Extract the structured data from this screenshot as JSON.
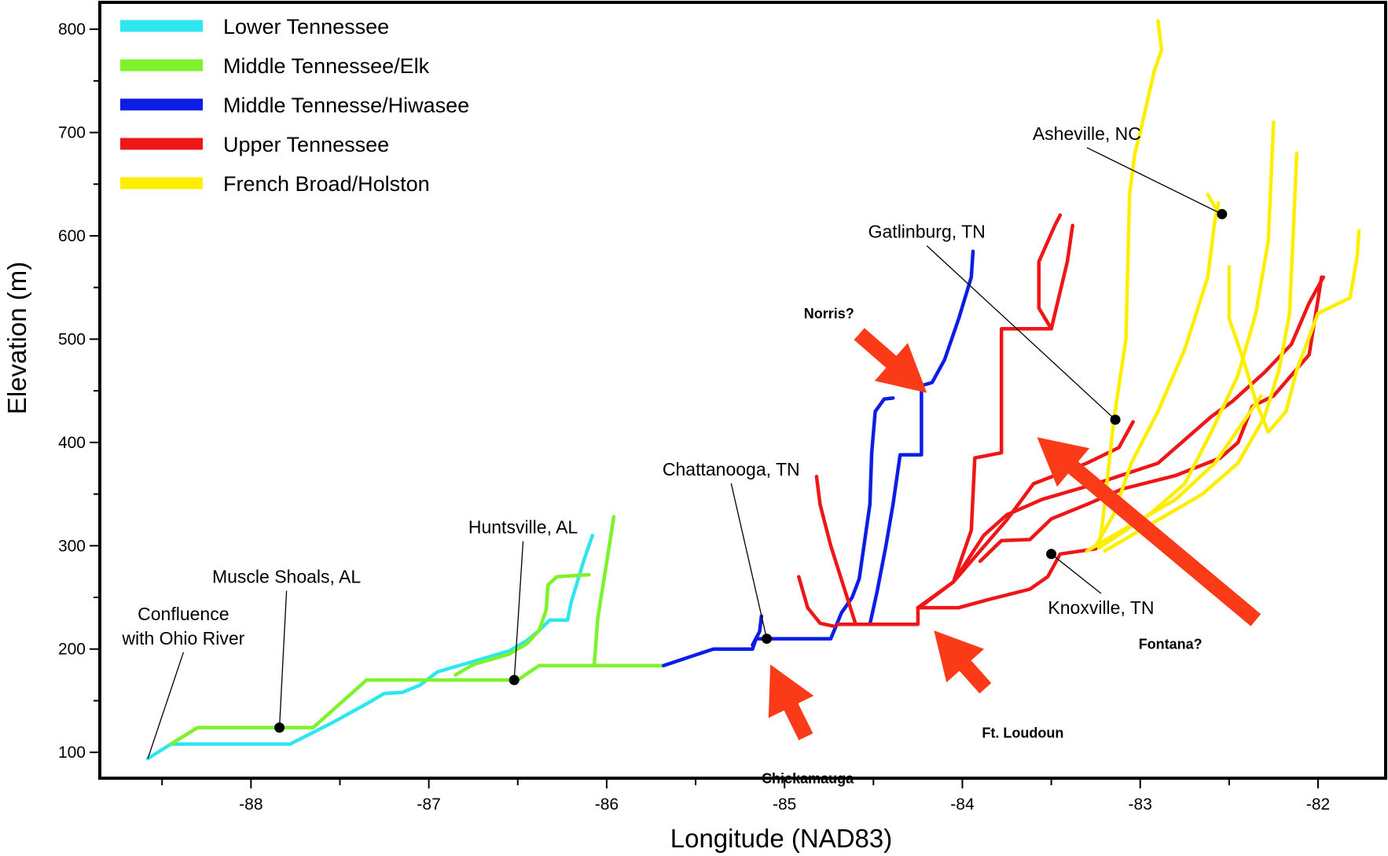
{
  "chart_data": {
    "type": "line",
    "title": "",
    "xlabel": "Longitude (NAD83)",
    "ylabel": "Elevation (m)",
    "xlim": [
      -88.85,
      -81.62
    ],
    "ylim": [
      75,
      826
    ],
    "x_ticks": [
      -88,
      -87,
      -86,
      -85,
      -84,
      -83,
      -82
    ],
    "y_ticks": [
      100,
      200,
      300,
      400,
      500,
      600,
      700,
      800
    ],
    "legend_position": "top-left",
    "grid": false,
    "series": [
      {
        "name": "Lower Tennessee",
        "color": "#2ee6f0",
        "paths": [
          [
            [
              -88.58,
              94
            ],
            [
              -88.45,
              108
            ],
            [
              -87.78,
              108
            ],
            [
              -87.55,
              128
            ],
            [
              -87.35,
              147
            ],
            [
              -87.25,
              157
            ],
            [
              -87.15,
              158
            ],
            [
              -87.05,
              165
            ],
            [
              -86.95,
              178
            ],
            [
              -86.75,
              188
            ],
            [
              -86.55,
              198
            ],
            [
              -86.45,
              208
            ],
            [
              -86.38,
              218
            ],
            [
              -86.32,
              228
            ],
            [
              -86.22,
              228
            ],
            [
              -86.2,
              245
            ],
            [
              -86.13,
              285
            ],
            [
              -86.08,
              310
            ]
          ]
        ]
      },
      {
        "name": "Middle Tennessee/Elk",
        "color": "#7ef22c",
        "paths": [
          [
            [
              -88.45,
              108
            ],
            [
              -88.3,
              124
            ],
            [
              -87.65,
              124
            ],
            [
              -87.35,
              170
            ],
            [
              -86.5,
              170
            ],
            [
              -86.38,
              184
            ],
            [
              -85.68,
              184
            ]
          ],
          [
            [
              -86.85,
              175
            ],
            [
              -86.75,
              185
            ],
            [
              -86.55,
              195
            ],
            [
              -86.45,
              205
            ],
            [
              -86.38,
              218
            ],
            [
              -86.34,
              238
            ],
            [
              -86.33,
              262
            ],
            [
              -86.28,
              270
            ],
            [
              -86.1,
              272
            ]
          ],
          [
            [
              -86.07,
              185
            ],
            [
              -86.05,
              230
            ],
            [
              -85.99,
              295
            ],
            [
              -85.96,
              328
            ]
          ]
        ]
      },
      {
        "name": "Middle Tennesse/Hiwasee",
        "color": "#0c1ee6",
        "paths": [
          [
            [
              -85.68,
              184
            ],
            [
              -85.4,
              200
            ],
            [
              -85.18,
              200
            ],
            [
              -85.16,
              210
            ],
            [
              -84.74,
              210
            ],
            [
              -84.68,
              235
            ],
            [
              -84.62,
              250
            ],
            [
              -84.58,
              268
            ],
            [
              -84.52,
              340
            ],
            [
              -84.51,
              390
            ],
            [
              -84.49,
              430
            ],
            [
              -84.44,
              442
            ],
            [
              -84.39,
              443
            ]
          ],
          [
            [
              -85.18,
              204
            ],
            [
              -85.14,
              217
            ],
            [
              -85.13,
              232
            ]
          ],
          [
            [
              -84.52,
              224
            ],
            [
              -84.48,
              255
            ],
            [
              -84.43,
              300
            ],
            [
              -84.39,
              340
            ],
            [
              -84.35,
              388
            ],
            [
              -84.23,
              388
            ],
            [
              -84.23,
              455
            ],
            [
              -84.17,
              458
            ],
            [
              -84.1,
              480
            ],
            [
              -84.02,
              520
            ],
            [
              -83.95,
              560
            ],
            [
              -83.94,
              585
            ]
          ]
        ]
      },
      {
        "name": "Upper Tennessee",
        "color": "#ee1616",
        "paths": [
          [
            [
              -84.7,
              224
            ],
            [
              -84.25,
              224
            ],
            [
              -84.25,
              240
            ],
            [
              -84.02,
              240
            ],
            [
              -83.85,
              248
            ],
            [
              -83.62,
              258
            ],
            [
              -83.52,
              270
            ],
            [
              -83.45,
              292
            ],
            [
              -83.25,
              297
            ]
          ],
          [
            [
              -84.92,
              270
            ],
            [
              -84.87,
              240
            ],
            [
              -84.8,
              225
            ],
            [
              -84.72,
              222
            ]
          ],
          [
            [
              -84.6,
              224
            ],
            [
              -84.67,
              262
            ],
            [
              -84.74,
              300
            ],
            [
              -84.8,
              340
            ],
            [
              -84.82,
              367
            ]
          ],
          [
            [
              -84.22,
              243
            ],
            [
              -84.05,
              265
            ],
            [
              -83.95,
              315
            ],
            [
              -83.93,
              385
            ],
            [
              -83.78,
              390
            ],
            [
              -83.78,
              510
            ],
            [
              -83.5,
              510
            ],
            [
              -83.57,
              530
            ],
            [
              -83.57,
              575
            ],
            [
              -83.48,
              610
            ],
            [
              -83.45,
              620
            ]
          ],
          [
            [
              -83.5,
              510
            ],
            [
              -83.41,
              575
            ],
            [
              -83.38,
              610
            ]
          ],
          [
            [
              -84.05,
              265
            ],
            [
              -83.75,
              325
            ],
            [
              -83.6,
              360
            ],
            [
              -83.3,
              380
            ],
            [
              -83.12,
              395
            ],
            [
              -83.04,
              420
            ]
          ],
          [
            [
              -83.9,
              285
            ],
            [
              -83.78,
              305
            ],
            [
              -83.62,
              306
            ],
            [
              -83.5,
              326
            ],
            [
              -83.3,
              340
            ],
            [
              -83.1,
              355
            ],
            [
              -82.8,
              368
            ],
            [
              -82.55,
              385
            ],
            [
              -82.45,
              400
            ],
            [
              -82.37,
              435
            ],
            [
              -82.25,
              445
            ],
            [
              -82.15,
              465
            ],
            [
              -82.05,
              485
            ],
            [
              -81.98,
              560
            ]
          ],
          [
            [
              -84.25,
              240
            ],
            [
              -84.05,
              265
            ],
            [
              -83.88,
              310
            ],
            [
              -83.75,
              330
            ],
            [
              -83.55,
              345
            ],
            [
              -83.25,
              360
            ],
            [
              -82.9,
              380
            ],
            [
              -82.6,
              425
            ],
            [
              -82.48,
              440
            ],
            [
              -82.3,
              468
            ],
            [
              -82.15,
              495
            ],
            [
              -82.05,
              535
            ],
            [
              -81.97,
              560
            ]
          ]
        ]
      },
      {
        "name": "French Broad/Holston",
        "color": "#ffee00",
        "paths": [
          [
            [
              -83.23,
              298
            ],
            [
              -83.2,
              340
            ],
            [
              -83.15,
              420
            ],
            [
              -83.08,
              500
            ],
            [
              -83.07,
              570
            ],
            [
              -83.06,
              640
            ],
            [
              -83.03,
              680
            ],
            [
              -83.0,
              700
            ],
            [
              -82.92,
              760
            ],
            [
              -82.88,
              780
            ],
            [
              -82.9,
              808
            ]
          ],
          [
            [
              -83.25,
              300
            ],
            [
              -83.15,
              330
            ],
            [
              -83.05,
              380
            ],
            [
              -82.9,
              430
            ],
            [
              -82.75,
              490
            ],
            [
              -82.62,
              560
            ],
            [
              -82.58,
              615
            ],
            [
              -82.56,
              632
            ]
          ],
          [
            [
              -82.55,
              622
            ],
            [
              -82.58,
              628
            ],
            [
              -82.62,
              640
            ]
          ],
          [
            [
              -83.23,
              298
            ],
            [
              -82.95,
              330
            ],
            [
              -82.75,
              360
            ],
            [
              -82.6,
              410
            ],
            [
              -82.45,
              465
            ],
            [
              -82.35,
              525
            ],
            [
              -82.28,
              595
            ],
            [
              -82.25,
              710
            ]
          ],
          [
            [
              -83.2,
              295
            ],
            [
              -82.9,
              325
            ],
            [
              -82.65,
              350
            ],
            [
              -82.45,
              380
            ],
            [
              -82.3,
              425
            ],
            [
              -82.22,
              470
            ],
            [
              -82.16,
              525
            ],
            [
              -82.14,
              600
            ],
            [
              -82.12,
              680
            ]
          ],
          [
            [
              -82.5,
              570
            ],
            [
              -82.5,
              520
            ],
            [
              -82.42,
              480
            ],
            [
              -82.35,
              440
            ],
            [
              -82.28,
              410
            ],
            [
              -82.18,
              430
            ],
            [
              -82.12,
              470
            ],
            [
              -82.0,
              525
            ],
            [
              -81.82,
              540
            ],
            [
              -81.78,
              580
            ],
            [
              -81.77,
              605
            ]
          ],
          [
            [
              -83.3,
              295
            ],
            [
              -83.05,
              320
            ],
            [
              -82.8,
              345
            ],
            [
              -82.58,
              380
            ],
            [
              -82.42,
              420
            ],
            [
              -82.32,
              445
            ]
          ]
        ]
      }
    ],
    "markers": [
      {
        "label": "Confluence\nwith Ohio River",
        "x": -88.58,
        "y": 94,
        "dot": false,
        "label_x": -88.38,
        "label_y": 228
      },
      {
        "label": "Muscle Shoals, AL",
        "x": -87.84,
        "y": 124,
        "dot": true,
        "label_x": -87.8,
        "label_y": 264
      },
      {
        "label": "Huntsville, AL",
        "x": -86.52,
        "y": 170,
        "dot": true,
        "label_x": -86.47,
        "label_y": 312
      },
      {
        "label": "Chattanooga, TN",
        "x": -85.1,
        "y": 210,
        "dot": true,
        "label_x": -85.3,
        "label_y": 368
      },
      {
        "label": "Gatlinburg, TN",
        "x": -83.14,
        "y": 422,
        "dot": true,
        "label_x": -84.2,
        "label_y": 598
      },
      {
        "label": "Asheville, NC",
        "x": -82.54,
        "y": 621,
        "dot": true,
        "label_x": -83.3,
        "label_y": 693
      },
      {
        "label": "Knoxville, TN",
        "x": -83.5,
        "y": 292,
        "dot": true,
        "label_x": -83.22,
        "label_y": 234
      }
    ],
    "annotations": [
      {
        "label": "Norris?",
        "label_x": -84.75,
        "label_y": 520,
        "arrow_from_x": -84.58,
        "arrow_from_y": 505,
        "arrow_to_x": -84.2,
        "arrow_to_y": 448
      },
      {
        "label": "Chickamauga",
        "label_x": -84.87,
        "label_y": 70,
        "arrow_from_x": -84.88,
        "arrow_from_y": 115,
        "arrow_to_x": -85.08,
        "arrow_to_y": 185
      },
      {
        "label": "Ft. Loudoun",
        "label_x": -83.66,
        "label_y": 114,
        "arrow_from_x": -83.87,
        "arrow_from_y": 162,
        "arrow_to_x": -84.16,
        "arrow_to_y": 218
      },
      {
        "label": "Fontana?",
        "label_x": -82.83,
        "label_y": 200,
        "arrow_from_x": -82.35,
        "arrow_from_y": 228,
        "arrow_to_x": -83.58,
        "arrow_to_y": 405
      }
    ]
  }
}
